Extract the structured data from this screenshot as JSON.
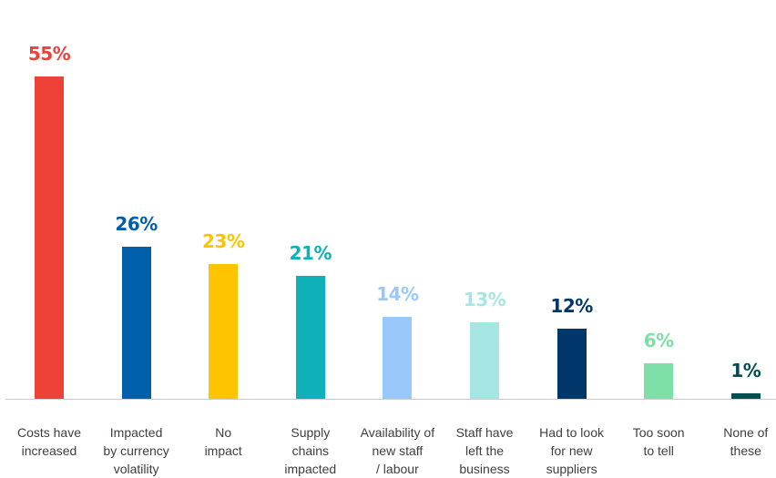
{
  "chart_data": {
    "type": "bar",
    "unit": "%",
    "ylim": [
      0,
      55
    ],
    "grid": false,
    "categories": [
      "Costs have\nincreased",
      "Impacted\nby currency\nvolatility",
      "No\nimpact",
      "Supply\nchains\nimpacted",
      "Availability of\nnew staff\n/ labour",
      "Staff have\nleft the\nbusiness",
      "Had to look\nfor new\nsuppliers",
      "Too soon\nto tell",
      "None of\nthese"
    ],
    "values": [
      55,
      26,
      23,
      21,
      14,
      13,
      12,
      6,
      1
    ],
    "value_labels": [
      "55%",
      "26%",
      "23%",
      "21%",
      "14%",
      "13%",
      "12%",
      "6%",
      "1%"
    ],
    "colors": [
      "#ee4238",
      "#005eaa",
      "#ffc400",
      "#10b0b8",
      "#99c9fb",
      "#a6e6e2",
      "#00366a",
      "#7ee0a6",
      "#004e50"
    ]
  }
}
